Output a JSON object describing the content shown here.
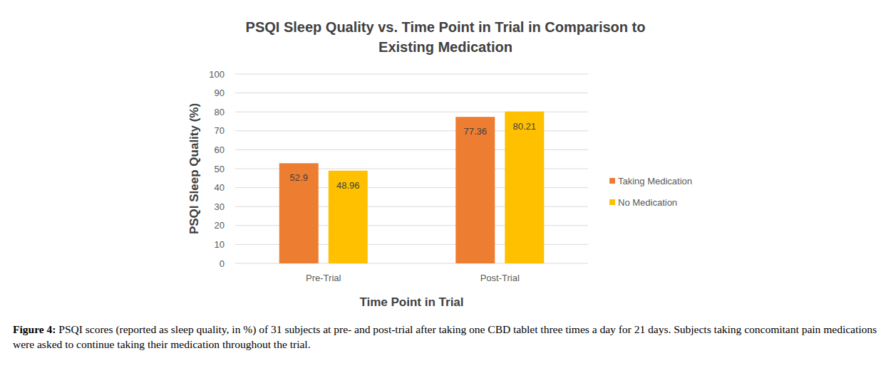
{
  "chart_data": {
    "type": "bar",
    "title": "PSQI Sleep Quality vs. Time Point in Trial in Comparison to Existing Medication",
    "x_label": "Time Point in Trial",
    "y_label": "PSQI Sleep Quality (%)",
    "categories": [
      "Pre-Trial",
      "Post-Trial"
    ],
    "series": [
      {
        "name": "Taking Medication",
        "color": "#ed7d31",
        "values": [
          52.9,
          77.36
        ]
      },
      {
        "name": "No Medication",
        "color": "#ffc000",
        "values": [
          48.96,
          80.21
        ]
      }
    ],
    "ylim": [
      0,
      100
    ],
    "yticks": [
      0,
      10,
      20,
      30,
      40,
      50,
      60,
      70,
      80,
      90,
      100
    ],
    "grid": true,
    "legend": "right",
    "data_labels": true,
    "caption": {
      "label": "Figure 4:",
      "text": "PSQI scores (reported as sleep quality, in %) of 31 subjects at pre- and post-trial after taking one CBD tablet three times a day for 21 days. Subjects taking concomitant pain medications were asked to continue taking their medication throughout the trial."
    }
  }
}
